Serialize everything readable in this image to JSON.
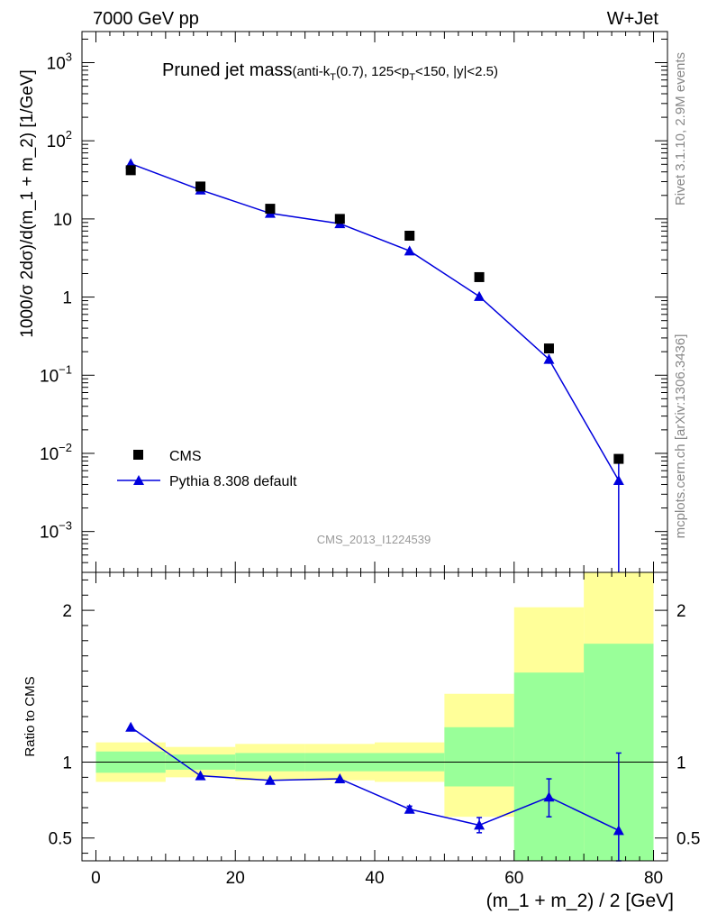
{
  "header": {
    "left": "7000 GeV pp",
    "right": "W+Jet"
  },
  "plot_title": {
    "main": "Pruned jet mass",
    "detail_prefix": "(anti-k",
    "detail_sub1": "T",
    "detail_mid": "(0.7), 125<p",
    "detail_sub2": "T",
    "detail_suffix": "<150, |y|<2.5)"
  },
  "analysis_id": "CMS_2013_I1224539",
  "side_labels": {
    "rivet": "Rivet 3.1.10,  2.9M events",
    "mcplots": "mcplots.cern.ch [arXiv:1306.3436]"
  },
  "legend": {
    "cms": "CMS",
    "pythia": "Pythia 8.308 default"
  },
  "colors": {
    "data_marker": "#000000",
    "mc_line": "#0000dd",
    "band_inner": "#99ff99",
    "band_outer": "#ffff99"
  },
  "chart_data": [
    {
      "type": "scatter",
      "panel": "main",
      "ylabel": "1000/σ 2dσ)/d(m_1 + m_2) [1/GeV]",
      "yscale": "log",
      "ylim": [
        0.0003,
        2500
      ],
      "xlim": [
        -2,
        82
      ],
      "y_ticks": [
        "10^-3",
        "10^-2",
        "10^-1",
        "1",
        "10",
        "10^2",
        "10^3"
      ],
      "series": [
        {
          "name": "CMS",
          "x": [
            5,
            15,
            25,
            35,
            45,
            55,
            65,
            75
          ],
          "y": [
            42,
            26,
            13.5,
            10,
            6.1,
            1.8,
            0.22,
            0.0085
          ]
        },
        {
          "name": "Pythia 8.308 default",
          "x": [
            5,
            15,
            25,
            35,
            45,
            55,
            65,
            75
          ],
          "y": [
            51,
            23.5,
            11.8,
            8.7,
            3.9,
            1.02,
            0.16,
            0.0045
          ],
          "yerr_low": [
            0,
            0,
            0,
            0,
            0,
            0,
            0.02,
            0.0045
          ],
          "yerr_high": [
            0,
            0,
            0,
            0,
            0,
            0,
            0.025,
            0.0045
          ]
        }
      ]
    },
    {
      "type": "line",
      "panel": "ratio",
      "ylabel": "Ratio to CMS",
      "xlabel": "(m_1 + m_2) / 2 [GeV]",
      "ylim": [
        0.35,
        2.25
      ],
      "xlim": [
        -2,
        82
      ],
      "x_ticks": [
        0,
        20,
        40,
        60,
        80
      ],
      "y_ticks": [
        0.5,
        1,
        2
      ],
      "bands": {
        "bin_edges": [
          0,
          10,
          20,
          30,
          40,
          50,
          60,
          70,
          80
        ],
        "inner_low": [
          0.93,
          0.95,
          0.94,
          0.94,
          0.94,
          0.84,
          0.35,
          0.35
        ],
        "inner_high": [
          1.07,
          1.05,
          1.06,
          1.06,
          1.06,
          1.23,
          1.59,
          1.78
        ],
        "outer_low": [
          0.87,
          0.9,
          0.88,
          0.88,
          0.87,
          0.64,
          0.47,
          0.35
        ],
        "outer_high": [
          1.13,
          1.1,
          1.12,
          1.12,
          1.13,
          1.45,
          2.02,
          2.25
        ]
      },
      "series": [
        {
          "name": "Pythia 8.308 default",
          "x": [
            5,
            15,
            25,
            35,
            45,
            55,
            65,
            75
          ],
          "y": [
            1.23,
            0.91,
            0.88,
            0.89,
            0.69,
            0.585,
            0.77,
            0.55
          ],
          "yerr_low": [
            0,
            0,
            0,
            0,
            0.02,
            0.05,
            0.13,
            0.55
          ],
          "yerr_high": [
            0,
            0,
            0,
            0,
            0.02,
            0.05,
            0.12,
            0.51
          ]
        }
      ]
    }
  ]
}
